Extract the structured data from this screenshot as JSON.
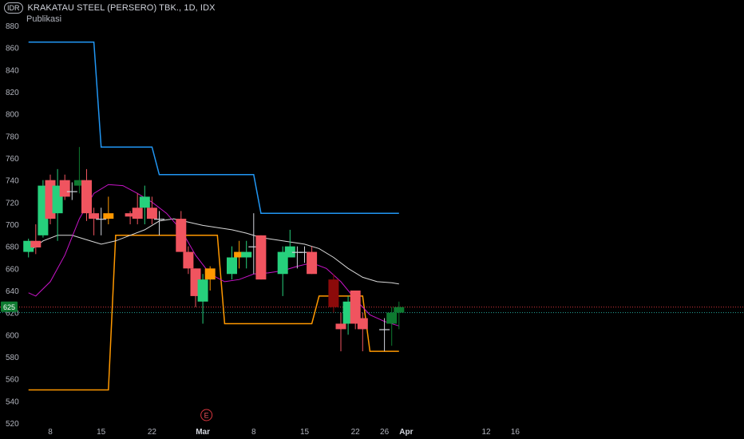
{
  "header": {
    "currency_badge": "IDR",
    "title": "KRAKATAU STEEL (PERSERO) TBK., 1D, IDX",
    "subtitle": "Publikasi"
  },
  "price_label": "625",
  "earnings_marker": "E",
  "colors": {
    "background": "#000000",
    "up": "#26d07c",
    "down": "#f0545f",
    "up_dark": "#0e7a30",
    "down_dark": "#8c0a0a",
    "neutral": "#ff9800",
    "donchian": "#ff9800",
    "upper_channel": "#2196f3",
    "ma_fast": "#c814c8",
    "ma_slow": "#d9d9d9",
    "price_line": "#d9363e",
    "grid": "#1a1a1a"
  },
  "chart_data": {
    "type": "candlestick",
    "title": "KRAKATAU STEEL (PERSERO) TBK., 1D, IDX",
    "ylim": [
      520,
      880
    ],
    "y_ticks": [
      880,
      860,
      840,
      820,
      800,
      780,
      760,
      740,
      720,
      700,
      680,
      660,
      640,
      620,
      600,
      580,
      560,
      540,
      520
    ],
    "x_ticks": [
      {
        "label": "8",
        "day": 8
      },
      {
        "label": "15",
        "day": 15
      },
      {
        "label": "22",
        "day": 22
      },
      {
        "label": "Mar",
        "day": 29,
        "strong": true
      },
      {
        "label": "8",
        "day": 36
      },
      {
        "label": "15",
        "day": 43
      },
      {
        "label": "22",
        "day": 50
      },
      {
        "label": "26",
        "day": 54
      },
      {
        "label": "Apr",
        "day": 57,
        "strong": true
      },
      {
        "label": "12",
        "day": 68
      },
      {
        "label": "16",
        "day": 72
      }
    ],
    "candles": [
      {
        "day": 5,
        "o": 675,
        "h": 687,
        "l": 670,
        "c": 685,
        "style": "up"
      },
      {
        "day": 6,
        "o": 685,
        "h": 700,
        "l": 673,
        "c": 679,
        "style": "down"
      },
      {
        "day": 7,
        "o": 690,
        "h": 740,
        "l": 688,
        "c": 735,
        "style": "up"
      },
      {
        "day": 8,
        "o": 740,
        "h": 745,
        "l": 700,
        "c": 705,
        "style": "down"
      },
      {
        "day": 9,
        "o": 710,
        "h": 750,
        "l": 685,
        "c": 735,
        "style": "up"
      },
      {
        "day": 10,
        "o": 740,
        "h": 745,
        "l": 722,
        "c": 725,
        "style": "down"
      },
      {
        "day": 11,
        "o": 730,
        "h": 738,
        "l": 722,
        "c": 730,
        "style": "doji"
      },
      {
        "day": 12,
        "o": 735,
        "h": 770,
        "l": 728,
        "c": 740,
        "style": "up_dark"
      },
      {
        "day": 13,
        "o": 740,
        "h": 750,
        "l": 703,
        "c": 710,
        "style": "down"
      },
      {
        "day": 14,
        "o": 710,
        "h": 715,
        "l": 690,
        "c": 705,
        "style": "down"
      },
      {
        "day": 15,
        "o": 705,
        "h": 715,
        "l": 690,
        "c": 705,
        "style": "doji"
      },
      {
        "day": 16,
        "o": 710,
        "h": 725,
        "l": 700,
        "c": 705,
        "style": "neutral"
      },
      {
        "day": 19,
        "o": 707,
        "h": 712,
        "l": 700,
        "c": 710,
        "style": "down"
      },
      {
        "day": 20,
        "o": 715,
        "h": 728,
        "l": 700,
        "c": 705,
        "style": "down"
      },
      {
        "day": 21,
        "o": 715,
        "h": 735,
        "l": 700,
        "c": 725,
        "style": "up"
      },
      {
        "day": 22,
        "o": 715,
        "h": 725,
        "l": 700,
        "c": 705,
        "style": "down"
      },
      {
        "day": 23,
        "o": 705,
        "h": 712,
        "l": 690,
        "c": 705,
        "style": "doji"
      },
      {
        "day": 26,
        "o": 705,
        "h": 712,
        "l": 675,
        "c": 675,
        "style": "down"
      },
      {
        "day": 27,
        "o": 675,
        "h": 680,
        "l": 655,
        "c": 660,
        "style": "down"
      },
      {
        "day": 28,
        "o": 660,
        "h": 660,
        "l": 625,
        "c": 635,
        "style": "down"
      },
      {
        "day": 29,
        "o": 630,
        "h": 655,
        "l": 610,
        "c": 650,
        "style": "up"
      },
      {
        "day": 30,
        "o": 650,
        "h": 662,
        "l": 640,
        "c": 660,
        "style": "neutral"
      },
      {
        "day": 33,
        "o": 655,
        "h": 680,
        "l": 650,
        "c": 670,
        "style": "up"
      },
      {
        "day": 34,
        "o": 675,
        "h": 685,
        "l": 660,
        "c": 670,
        "style": "neutral"
      },
      {
        "day": 35,
        "o": 670,
        "h": 685,
        "l": 660,
        "c": 675,
        "style": "up"
      },
      {
        "day": 36,
        "o": 680,
        "h": 710,
        "l": 655,
        "c": 680,
        "style": "doji"
      },
      {
        "day": 37,
        "o": 690,
        "h": 690,
        "l": 650,
        "c": 650,
        "style": "down"
      },
      {
        "day": 40,
        "o": 655,
        "h": 680,
        "l": 635,
        "c": 675,
        "style": "up"
      },
      {
        "day": 41,
        "o": 670,
        "h": 695,
        "l": 670,
        "c": 680,
        "style": "up"
      },
      {
        "day": 42,
        "o": 675,
        "h": 680,
        "l": 660,
        "c": 675,
        "style": "doji"
      },
      {
        "day": 43,
        "o": 675,
        "h": 680,
        "l": 665,
        "c": 675,
        "style": "doji"
      },
      {
        "day": 44,
        "o": 675,
        "h": 680,
        "l": 655,
        "c": 655,
        "style": "down"
      },
      {
        "day": 47,
        "o": 650,
        "h": 655,
        "l": 620,
        "c": 625,
        "style": "down_dark"
      },
      {
        "day": 48,
        "o": 610,
        "h": 620,
        "l": 585,
        "c": 605,
        "style": "down"
      },
      {
        "day": 49,
        "o": 610,
        "h": 635,
        "l": 600,
        "c": 630,
        "style": "up"
      },
      {
        "day": 50,
        "o": 640,
        "h": 640,
        "l": 605,
        "c": 610,
        "style": "down"
      },
      {
        "day": 51,
        "o": 615,
        "h": 620,
        "l": 585,
        "c": 605,
        "style": "down"
      },
      {
        "day": 54,
        "o": 605,
        "h": 615,
        "l": 585,
        "c": 605,
        "style": "doji"
      },
      {
        "day": 55,
        "o": 610,
        "h": 625,
        "l": 590,
        "c": 620,
        "style": "up_dark"
      },
      {
        "day": 56,
        "o": 620,
        "h": 630,
        "l": 605,
        "c": 625,
        "style": "up_dark"
      }
    ],
    "upper_channel": [
      [
        5,
        865
      ],
      [
        14,
        865
      ],
      [
        15,
        770
      ],
      [
        22,
        770
      ],
      [
        23,
        745
      ],
      [
        36,
        745
      ],
      [
        37,
        710
      ],
      [
        56,
        710
      ]
    ],
    "lower_channel": [
      [
        5,
        550
      ],
      [
        16,
        550
      ],
      [
        17,
        690
      ],
      [
        31,
        690
      ],
      [
        32,
        610
      ],
      [
        44,
        610
      ],
      [
        45,
        635
      ],
      [
        51,
        635
      ],
      [
        52,
        585
      ],
      [
        56,
        585
      ]
    ],
    "ma_fast": [
      [
        5,
        638
      ],
      [
        6,
        635
      ],
      [
        8,
        648
      ],
      [
        10,
        672
      ],
      [
        12,
        705
      ],
      [
        14,
        728
      ],
      [
        16,
        736
      ],
      [
        18,
        735
      ],
      [
        20,
        728
      ],
      [
        22,
        720
      ],
      [
        24,
        710
      ],
      [
        26,
        695
      ],
      [
        28,
        672
      ],
      [
        30,
        655
      ],
      [
        32,
        648
      ],
      [
        34,
        650
      ],
      [
        36,
        655
      ],
      [
        38,
        656
      ],
      [
        40,
        658
      ],
      [
        42,
        662
      ],
      [
        44,
        665
      ],
      [
        46,
        660
      ],
      [
        48,
        648
      ],
      [
        50,
        632
      ],
      [
        52,
        618
      ],
      [
        54,
        612
      ],
      [
        56,
        608
      ]
    ],
    "ma_slow": [
      [
        5,
        675
      ],
      [
        7,
        685
      ],
      [
        9,
        690
      ],
      [
        11,
        690
      ],
      [
        13,
        686
      ],
      [
        15,
        682
      ],
      [
        17,
        685
      ],
      [
        19,
        690
      ],
      [
        21,
        695
      ],
      [
        23,
        703
      ],
      [
        25,
        705
      ],
      [
        27,
        702
      ],
      [
        29,
        699
      ],
      [
        31,
        697
      ],
      [
        33,
        695
      ],
      [
        35,
        692
      ],
      [
        37,
        688
      ],
      [
        39,
        686
      ],
      [
        41,
        684
      ],
      [
        43,
        682
      ],
      [
        45,
        678
      ],
      [
        47,
        670
      ],
      [
        49,
        660
      ],
      [
        51,
        652
      ],
      [
        53,
        648
      ],
      [
        55,
        647
      ],
      [
        56,
        646
      ]
    ],
    "current_price": 625,
    "price_line_2": 620,
    "earnings_day": 29.5
  }
}
